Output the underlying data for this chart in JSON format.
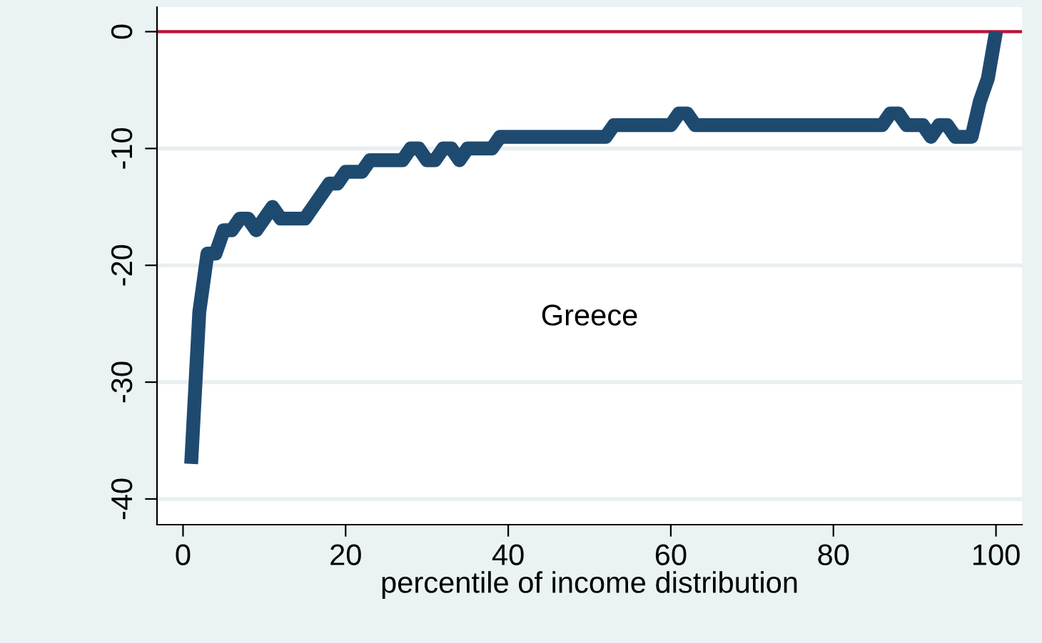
{
  "chart_data": {
    "type": "line",
    "xlabel": "percentile of income distribution",
    "x": [
      1,
      2,
      3,
      4,
      5,
      6,
      7,
      8,
      9,
      10,
      11,
      12,
      15,
      16,
      18,
      19,
      20,
      22,
      23,
      27,
      28,
      29,
      30,
      31,
      32,
      33,
      34,
      35,
      38,
      39,
      52,
      53,
      60,
      61,
      62,
      63,
      86,
      87,
      88,
      89,
      91,
      92,
      93,
      94,
      95,
      97,
      98,
      99,
      100
    ],
    "series": [
      {
        "color": "#1f4a70",
        "values": [
          -37,
          -24,
          -19,
          -19,
          -17,
          -17,
          -16,
          -16,
          -17,
          -16,
          -15,
          -16,
          -16,
          -15,
          -13,
          -13,
          -12,
          -12,
          -11,
          -11,
          -10,
          -10,
          -11,
          -11,
          -10,
          -10,
          -11,
          -10,
          -10,
          -9,
          -9,
          -8,
          -8,
          -7,
          -7,
          -8,
          -8,
          -7,
          -7,
          -8,
          -8,
          -9,
          -8,
          -8,
          -9,
          -9,
          -6,
          -4,
          0
        ]
      }
    ],
    "xlim": [
      -3.2,
      103.2
    ],
    "ylim": [
      -42.2,
      2.1
    ],
    "xticks": [
      0,
      20,
      40,
      60,
      80,
      100
    ],
    "yticks": [
      -40,
      -30,
      -20,
      -10,
      0
    ],
    "grid": "y",
    "marker": "none",
    "line_style": "solid",
    "ref_lines": [
      {
        "axis": "y",
        "value": 0,
        "color": "#c0103a"
      }
    ],
    "annotations": [
      "Greece"
    ]
  }
}
